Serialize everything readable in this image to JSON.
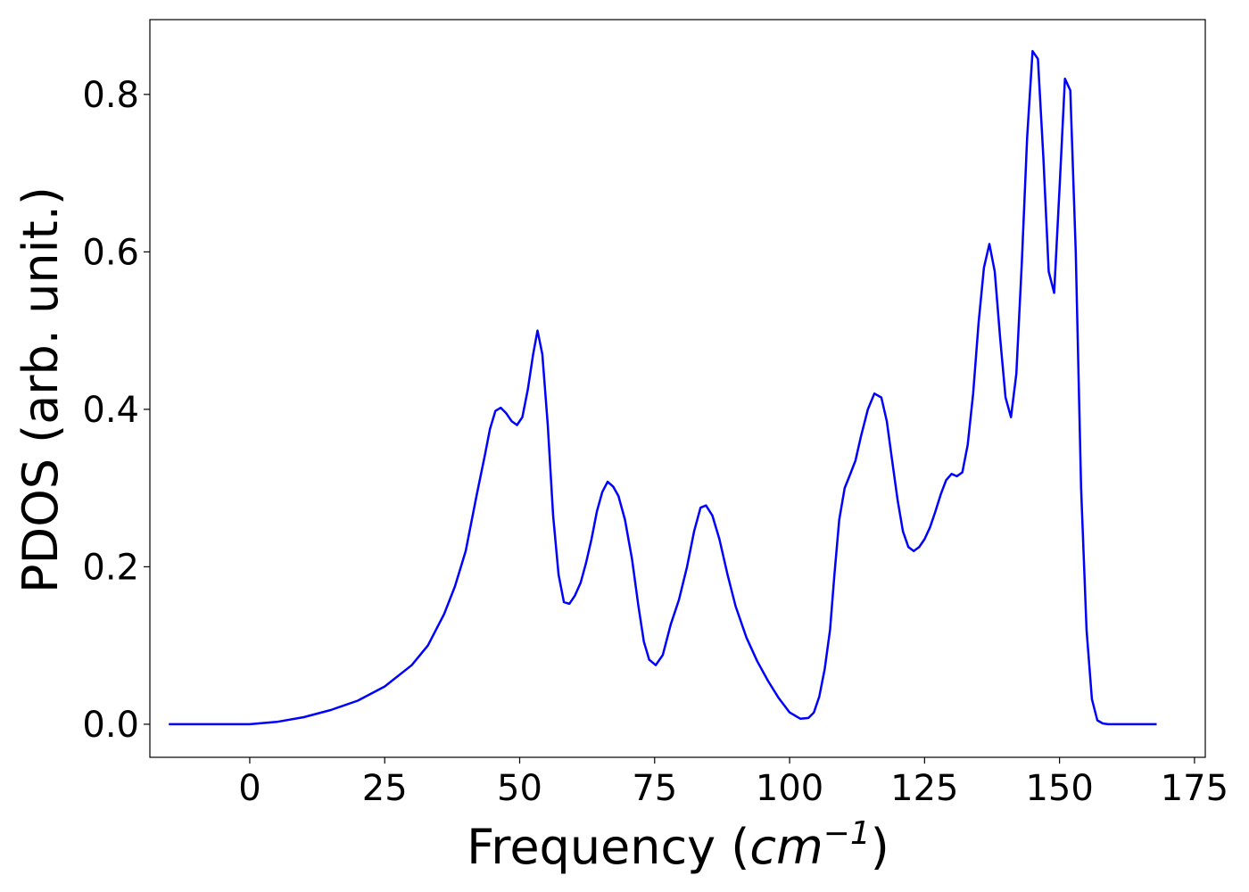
{
  "chart_data": {
    "type": "line",
    "title": "",
    "xlabel": "Frequency (",
    "xlabel_unit_base": "cm",
    "xlabel_unit_exp": "−1",
    "xlabel_close": ")",
    "ylabel": "PDOS (arb. unit.)",
    "xlim": [
      -18.5,
      177
    ],
    "ylim": [
      -0.042,
      0.895
    ],
    "xticks": [
      0,
      25,
      50,
      75,
      100,
      125,
      150,
      175
    ],
    "xtick_labels": [
      "0",
      "25",
      "50",
      "75",
      "100",
      "125",
      "150",
      "175"
    ],
    "yticks": [
      0.0,
      0.2,
      0.4,
      0.6,
      0.8
    ],
    "ytick_labels": [
      "0.0",
      "0.2",
      "0.4",
      "0.6",
      "0.8"
    ],
    "grid": false,
    "legend": "none",
    "series": [
      {
        "color": "#0000ff",
        "x": [
          -15,
          -5,
          0,
          5,
          10,
          15,
          20,
          25,
          30,
          33,
          36,
          38,
          40,
          42,
          43.5,
          44.5,
          45.5,
          46.5,
          47.5,
          48.5,
          49.5,
          50.5,
          51.5,
          52.5,
          53.3,
          54.2,
          55.2,
          56.2,
          57.2,
          58.2,
          59.2,
          60.2,
          61.3,
          62.3,
          63.3,
          64.3,
          65.3,
          66.3,
          67.3,
          68.3,
          69.5,
          70.8,
          72,
          73,
          74,
          75.2,
          76.5,
          78,
          79.5,
          81,
          82.3,
          83.5,
          84.5,
          85.7,
          87,
          88.5,
          90,
          92,
          94,
          96,
          98,
          100,
          102,
          103.5,
          104.5,
          105.5,
          106.5,
          107.5,
          108.3,
          109.2,
          110.2,
          111.2,
          112.2,
          113.2,
          114.5,
          115.7,
          117,
          118,
          119,
          120,
          121,
          122,
          123,
          124,
          125,
          126,
          127,
          128,
          129,
          130,
          131,
          132,
          133,
          134,
          135,
          136,
          137,
          138,
          139,
          140,
          141,
          142,
          143,
          144,
          145,
          146,
          147,
          148,
          149,
          150,
          151,
          152,
          153,
          154,
          155,
          156,
          157,
          158,
          159,
          160,
          163,
          168
        ],
        "y": [
          0,
          0,
          0,
          0.003,
          0.009,
          0.018,
          0.03,
          0.048,
          0.075,
          0.1,
          0.14,
          0.175,
          0.22,
          0.29,
          0.34,
          0.375,
          0.398,
          0.402,
          0.395,
          0.385,
          0.38,
          0.39,
          0.425,
          0.47,
          0.5,
          0.47,
          0.38,
          0.265,
          0.19,
          0.155,
          0.153,
          0.163,
          0.18,
          0.205,
          0.235,
          0.27,
          0.295,
          0.308,
          0.302,
          0.29,
          0.26,
          0.21,
          0.15,
          0.105,
          0.082,
          0.075,
          0.088,
          0.127,
          0.158,
          0.2,
          0.245,
          0.275,
          0.278,
          0.265,
          0.235,
          0.19,
          0.15,
          0.11,
          0.08,
          0.055,
          0.033,
          0.015,
          0.007,
          0.008,
          0.015,
          0.035,
          0.07,
          0.12,
          0.19,
          0.26,
          0.3,
          0.317,
          0.335,
          0.365,
          0.4,
          0.42,
          0.415,
          0.385,
          0.335,
          0.285,
          0.245,
          0.225,
          0.22,
          0.225,
          0.235,
          0.25,
          0.27,
          0.292,
          0.31,
          0.318,
          0.315,
          0.32,
          0.355,
          0.42,
          0.51,
          0.58,
          0.61,
          0.575,
          0.49,
          0.415,
          0.39,
          0.445,
          0.585,
          0.745,
          0.855,
          0.845,
          0.72,
          0.575,
          0.548,
          0.68,
          0.82,
          0.805,
          0.6,
          0.3,
          0.12,
          0.032,
          0.005,
          0.001,
          0,
          0,
          0,
          0
        ]
      }
    ]
  }
}
